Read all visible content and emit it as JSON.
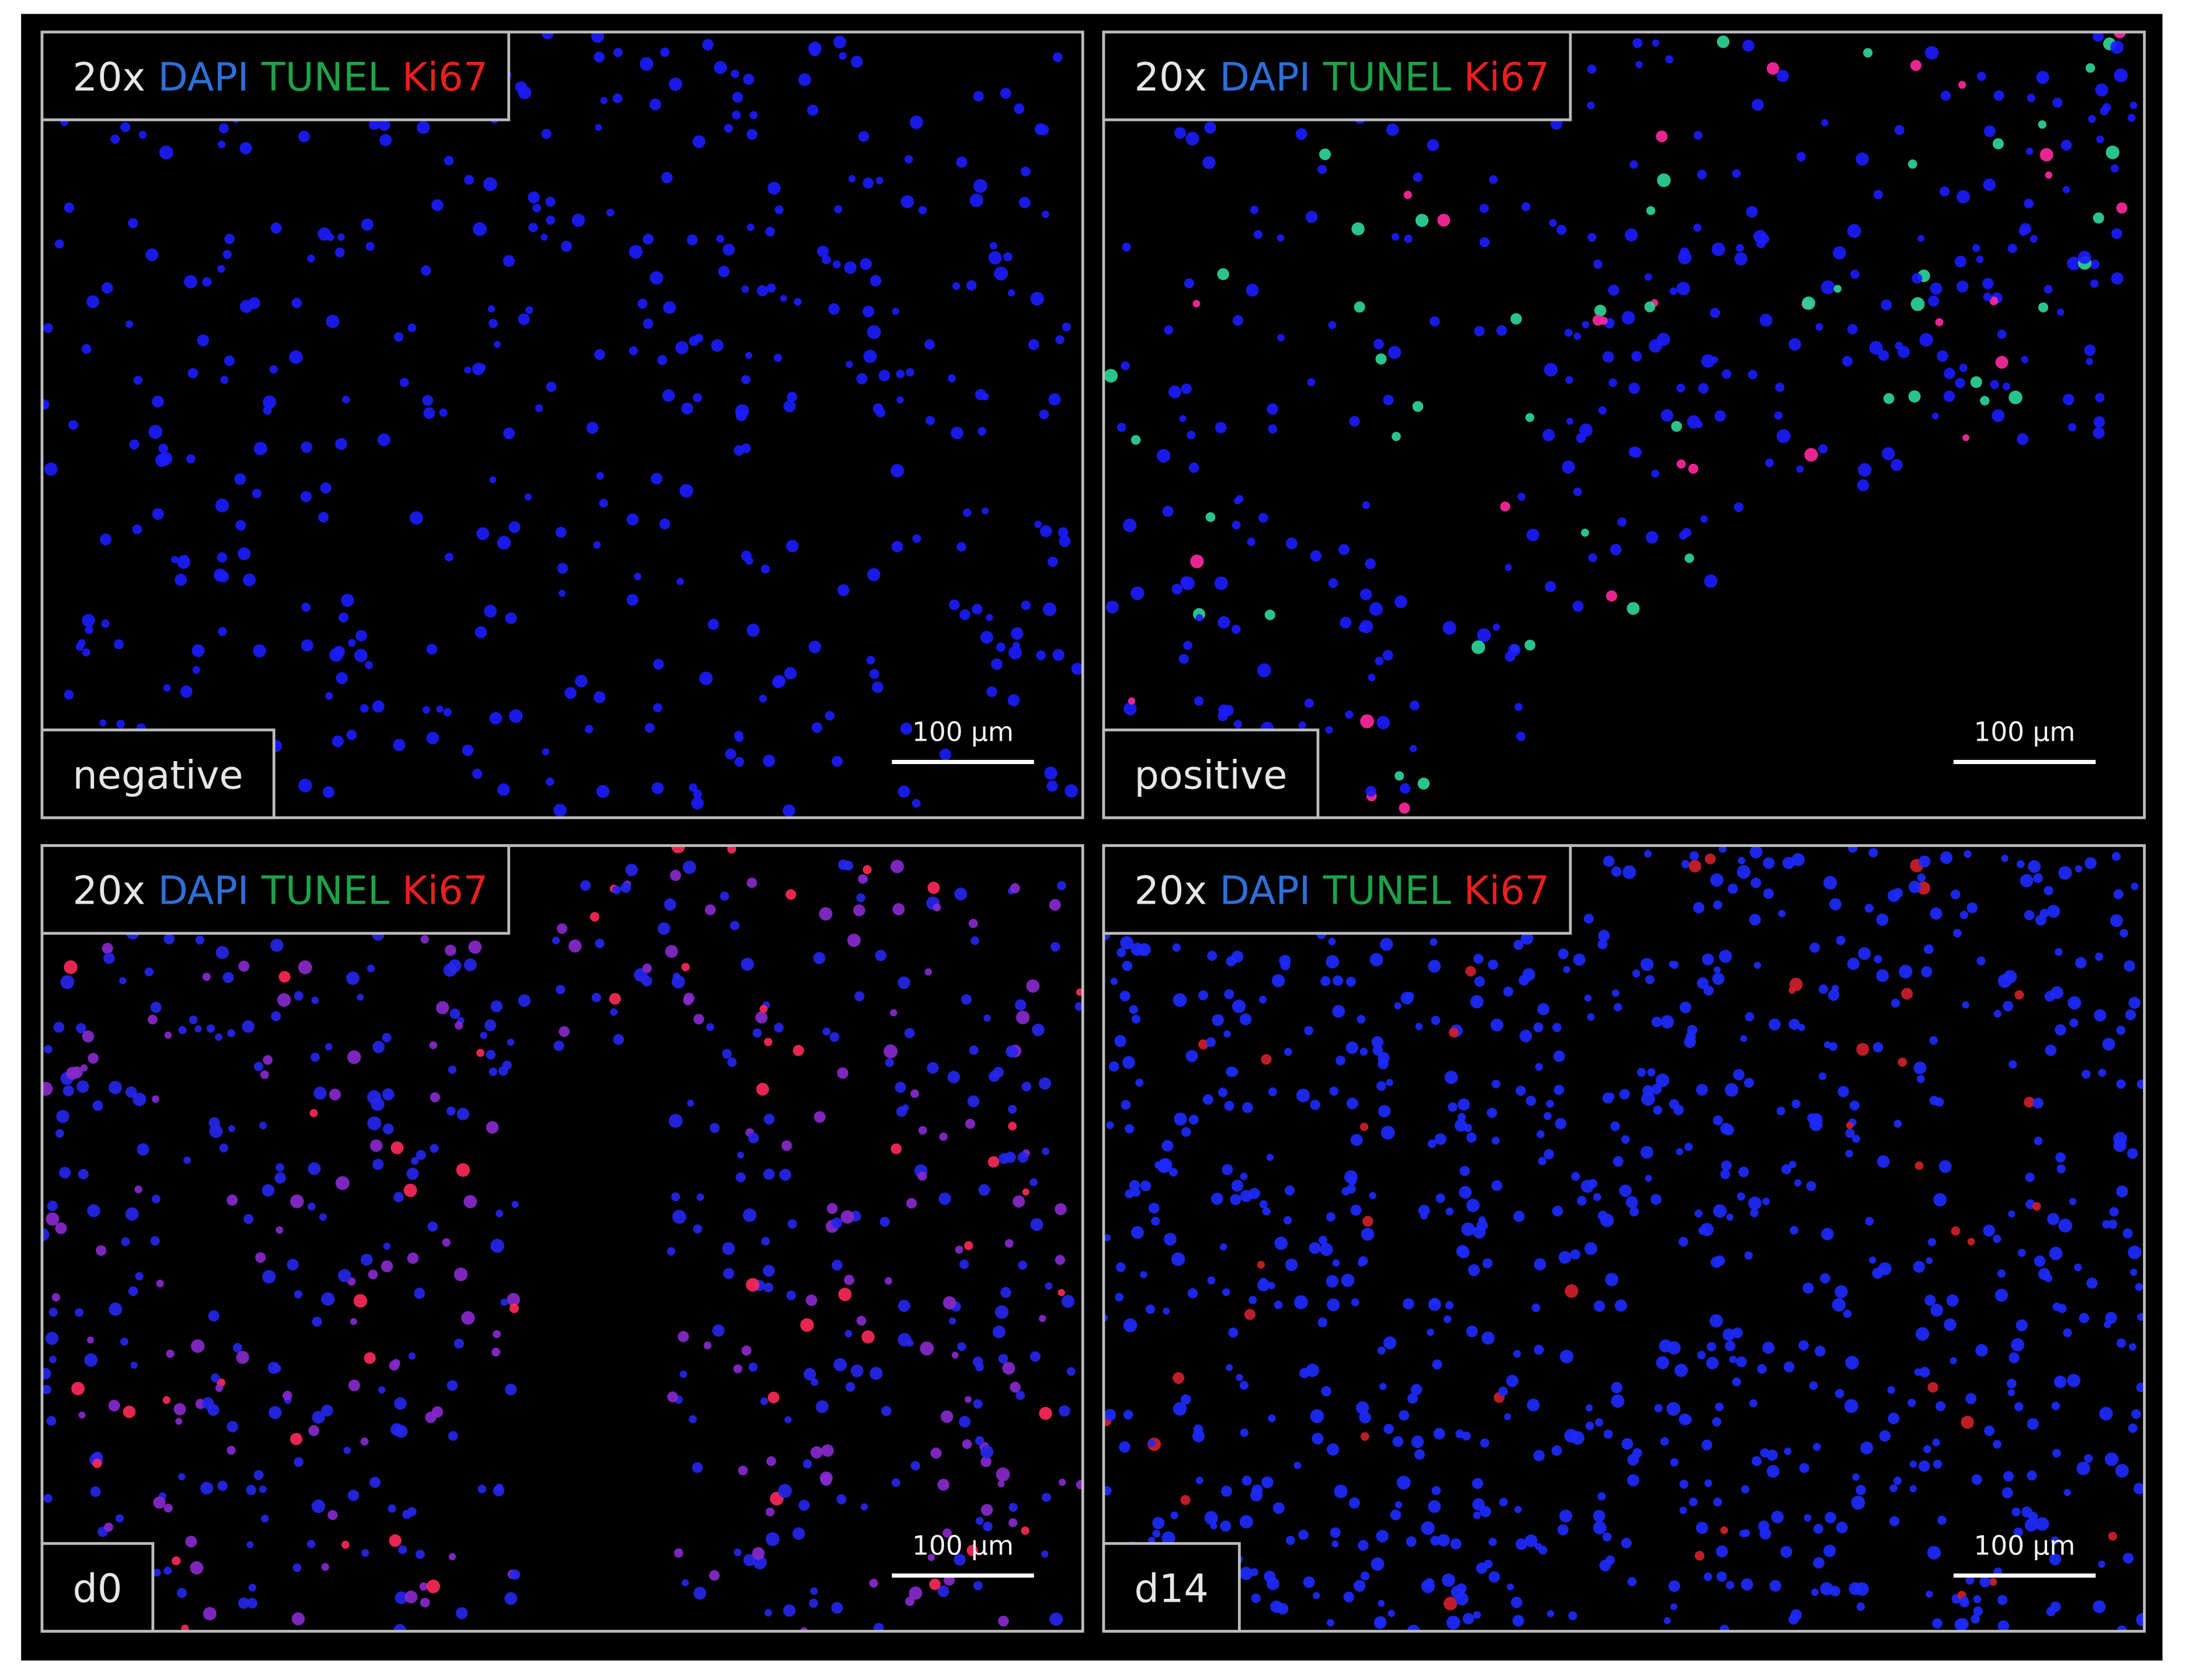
{
  "panels": [
    {
      "magnification": "20x",
      "stains": [
        "DAPI",
        "TUNEL",
        "Ki67"
      ],
      "condition": "negative",
      "scale_bar": "100 µm"
    },
    {
      "magnification": "20x",
      "stains": [
        "DAPI",
        "TUNEL",
        "Ki67"
      ],
      "condition": "positive",
      "scale_bar": "100 µm"
    },
    {
      "magnification": "20x",
      "stains": [
        "DAPI",
        "TUNEL",
        "Ki67"
      ],
      "condition": "d0",
      "scale_bar": "100 µm"
    },
    {
      "magnification": "20x",
      "stains": [
        "DAPI",
        "TUNEL",
        "Ki67"
      ],
      "condition": "d14",
      "scale_bar": "100 µm"
    }
  ]
}
